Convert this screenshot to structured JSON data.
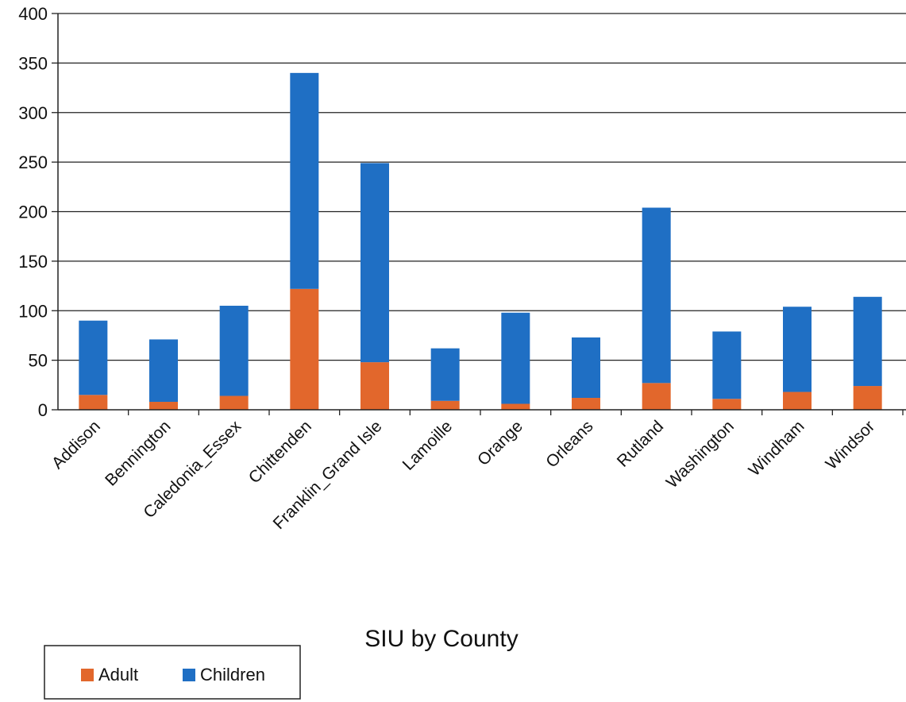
{
  "chart_data": {
    "type": "bar",
    "stacked": true,
    "title": "SIU by County",
    "xlabel": "",
    "ylabel": "",
    "ylim": [
      0,
      400
    ],
    "yticks": [
      0,
      50,
      100,
      150,
      200,
      250,
      300,
      350,
      400
    ],
    "grid": true,
    "legend_position": "bottom-left",
    "categories": [
      "Addison",
      "Bennington",
      "Caledonia_Essex",
      "Chittenden",
      "Franklin_Grand Isle",
      "Lamoille",
      "Orange",
      "Orleans",
      "Rutland",
      "Washington",
      "Windham",
      "Windsor"
    ],
    "series": [
      {
        "name": "Adult",
        "color": "#e2672c",
        "values": [
          15,
          8,
          14,
          122,
          48,
          9,
          6,
          12,
          27,
          11,
          18,
          24
        ]
      },
      {
        "name": "Children",
        "color": "#1f6fc4",
        "values": [
          75,
          63,
          91,
          218,
          201,
          53,
          92,
          61,
          177,
          68,
          86,
          90
        ]
      }
    ]
  }
}
